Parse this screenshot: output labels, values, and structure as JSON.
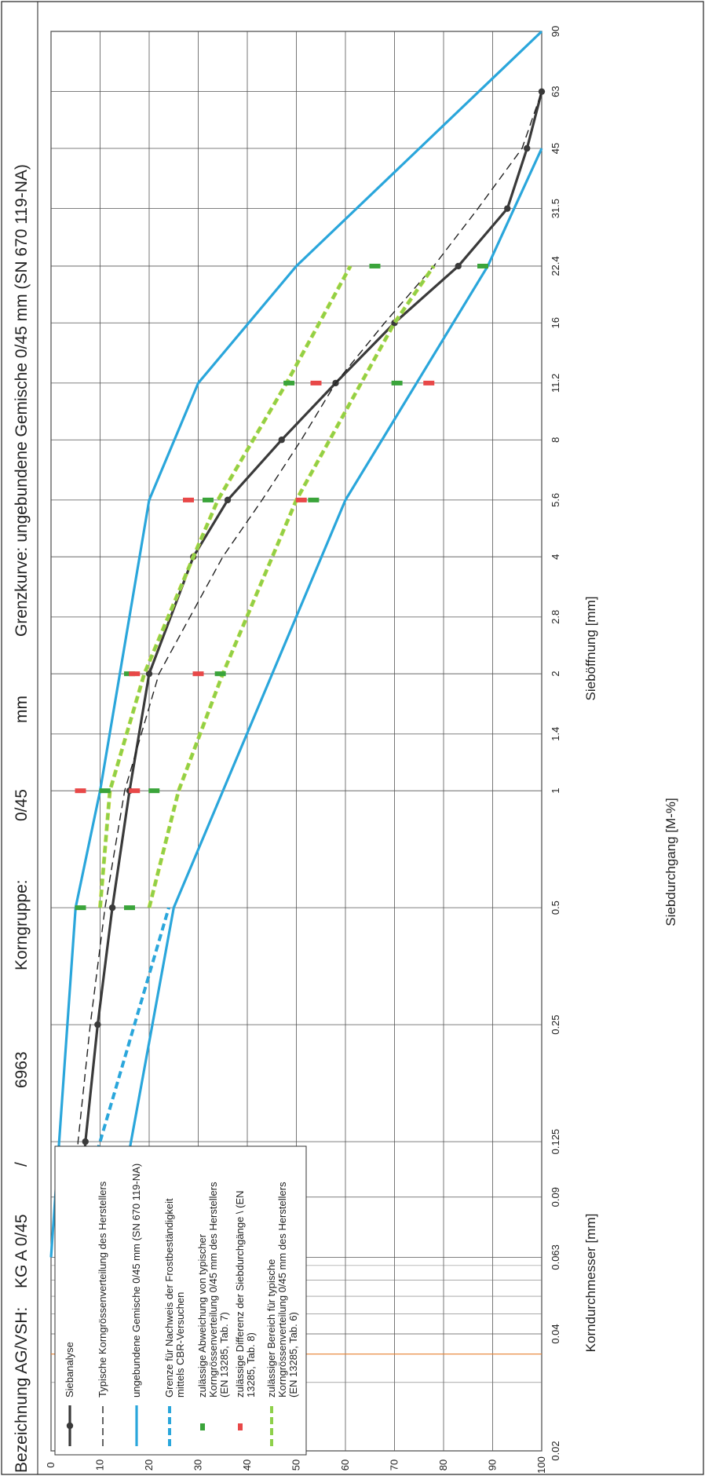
{
  "header": {
    "label_bezeichnung": "Bezeichnung AG/VSH:",
    "designation": "KG A 0/45",
    "separator": "/",
    "number": "6963",
    "label_korngruppe": "Korngruppe:",
    "korngruppe": "0/45",
    "unit": "mm",
    "grenzkurve": "Grenzkurve: ungebundene Gemische 0/45 mm (SN 670 119-NA)"
  },
  "chart_data": {
    "type": "line",
    "x_scale": "log",
    "xlabel_top": "Korndurchmesser [mm]",
    "xlabel_bottom": "Sieböffnung [mm]",
    "ylabel": "Siebdurchgang [M-%]",
    "ylim": [
      0,
      100
    ],
    "xlim": [
      0.02,
      90
    ],
    "grid": true,
    "legend_position": "bottom-left",
    "yticks": [
      "0",
      "10",
      "20",
      "30",
      "40",
      "50",
      "60",
      "70",
      "80",
      "90",
      "100"
    ],
    "xticks": [
      {
        "x": 0.02,
        "label": "0.02"
      },
      {
        "x": 0.04,
        "label": "0.04"
      },
      {
        "x": 0.063,
        "label": "0.063"
      },
      {
        "x": 0.09,
        "label": "0.09"
      },
      {
        "x": 0.125,
        "label": "0.125"
      },
      {
        "x": 0.25,
        "label": "0.25"
      },
      {
        "x": 0.5,
        "label": "0.5"
      },
      {
        "x": 1,
        "label": "1"
      },
      {
        "x": 1.4,
        "label": "1.4"
      },
      {
        "x": 2,
        "label": "2"
      },
      {
        "x": 2.8,
        "label": "2.8"
      },
      {
        "x": 4,
        "label": "4"
      },
      {
        "x": 5.6,
        "label": "5.6"
      },
      {
        "x": 8,
        "label": "8"
      },
      {
        "x": 11.2,
        "label": "11.2"
      },
      {
        "x": 16,
        "label": "16"
      },
      {
        "x": 22.4,
        "label": "22.4"
      },
      {
        "x": 31.5,
        "label": "31.5"
      },
      {
        "x": 45,
        "label": "45"
      },
      {
        "x": 63,
        "label": "63"
      },
      {
        "x": 90,
        "label": "90"
      }
    ],
    "series": [
      {
        "name": "Siebanalyse",
        "color": "#3a3a3a",
        "style": "solid-marker",
        "x": [
          0.063,
          0.125,
          0.25,
          0.5,
          1,
          2,
          4,
          5.6,
          8,
          11.2,
          16,
          22.4,
          31.5,
          45,
          63
        ],
        "y": [
          5.5,
          7.0,
          9.5,
          12.5,
          16,
          20,
          29,
          36,
          47,
          58,
          70,
          83,
          93,
          97,
          100
        ]
      },
      {
        "name": "Typische Korngrössenverteilung des Herstellers",
        "color": "#222222",
        "style": "dashed",
        "x": [
          0.063,
          0.125,
          0.25,
          0.5,
          1,
          2,
          4,
          5.6,
          8,
          11.2,
          16,
          22.4,
          31.5,
          45,
          63
        ],
        "y": [
          4.5,
          5.5,
          8,
          11,
          15,
          22,
          35,
          43,
          51,
          58,
          68,
          78,
          87,
          96,
          100
        ]
      },
      {
        "name": "ungebundene Gemische 0/45 mm (SN 670 119-NA)",
        "color": "#2aa6db",
        "style": "solid",
        "x": [
          0.063,
          0.5,
          5.6,
          22.4,
          45
        ],
        "y": [
          12,
          25,
          60,
          89,
          100
        ]
      },
      {
        "name": "ungebundene Gemische 0/45 mm (SN 670 119-NA)",
        "color": "#2aa6db",
        "style": "solid",
        "x": [
          0.063,
          0.5,
          1,
          5.6,
          11.2,
          22.4,
          90
        ],
        "y": [
          0,
          5,
          10,
          20,
          30,
          50,
          100
        ]
      },
      {
        "name": "Grenze für Nachweis der Frostbeständigkeit mittels CBR-Versuchen",
        "color": "#2aa6db",
        "style": "dashed",
        "x": [
          0.063,
          0.125,
          0.25,
          0.5
        ],
        "y": [
          3,
          10,
          17,
          24
        ]
      },
      {
        "name": "zulässiger Bereich für typische Korngrössenverteilung 0/45 mm des Herstellers (EN 13285, Tab. 6)",
        "color": "#8ed04a",
        "style": "dashed",
        "x": [
          0.5,
          1,
          2,
          5.6,
          16,
          22.4
        ],
        "y": [
          20,
          26,
          35,
          50,
          70,
          78
        ]
      },
      {
        "name": "zulässiger Bereich für typische Korngrössenverteilung 0/45 mm des Herstellers (EN 13285, Tab. 6)",
        "color": "#8ed04a",
        "style": "dashed",
        "x": [
          0.5,
          1,
          2,
          4,
          5.6,
          11.2,
          22.4
        ],
        "y": [
          10,
          12,
          19,
          29,
          34,
          48,
          61
        ]
      }
    ],
    "markers_green": [
      {
        "x": 0.5,
        "y": 16
      },
      {
        "x": 0.5,
        "y": 6
      },
      {
        "x": 1,
        "y": 21
      },
      {
        "x": 1,
        "y": 11
      },
      {
        "x": 2,
        "y": 34.5
      },
      {
        "x": 2,
        "y": 16
      },
      {
        "x": 5.6,
        "y": 53.5
      },
      {
        "x": 5.6,
        "y": 32
      },
      {
        "x": 11.2,
        "y": 70.5
      },
      {
        "x": 11.2,
        "y": 48.5
      },
      {
        "x": 22.4,
        "y": 88
      },
      {
        "x": 22.4,
        "y": 66
      }
    ],
    "markers_red": [
      {
        "x": 1,
        "y": 17
      },
      {
        "x": 1,
        "y": 6
      },
      {
        "x": 2,
        "y": 30
      },
      {
        "x": 2,
        "y": 17
      },
      {
        "x": 5.6,
        "y": 51
      },
      {
        "x": 5.6,
        "y": 28
      },
      {
        "x": 11.2,
        "y": 77
      },
      {
        "x": 11.2,
        "y": 54
      }
    ],
    "legend": [
      {
        "label": "Siebanalyse",
        "key": "solid-marker",
        "color": "#3a3a3a"
      },
      {
        "label": "Typische Korngrössenverteilung des Herstellers",
        "key": "dashed",
        "color": "#222222"
      },
      {
        "label": "ungebundene Gemische 0/45 mm (SN 670 119-NA)",
        "key": "solid",
        "color": "#2aa6db"
      },
      {
        "label": "Grenze für Nachweis der Frostbeständigkeit mittels CBR-Versuchen",
        "key": "dashed",
        "color": "#2aa6db"
      },
      {
        "label": "zulässige Abweichung von typischer Korngrössenverteilung 0/45 mm des Herstellers (EN 13285, Tab. 7)",
        "key": "tick-green",
        "color": "#3aa43a"
      },
      {
        "label": "zulässige Differenz der Siebdurchgänge \\ (EN 13285, Tab. 8)",
        "key": "tick-red",
        "color": "#e84848"
      },
      {
        "label": "zulässiger Bereich für typische Korngrössenverteilung 0/45 mm des Herstellers (EN 13285, Tab. 6)",
        "key": "dashed",
        "color": "#8ed04a"
      }
    ],
    "vertical_line": {
      "x": 0.0355,
      "color": "#e88030"
    }
  }
}
